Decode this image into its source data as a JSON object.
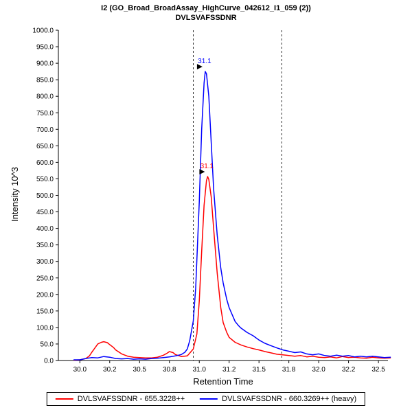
{
  "header": {
    "title_line1": "I2 (GO_Broad_BroadAssay_HighCurve_042612_I1_059 (2))",
    "title_line2": "DVLSVAFSSDNR"
  },
  "chart_data": {
    "type": "line",
    "title": "I2 (GO_Broad_BroadAssay_HighCurve_042612_I1_059 (2))",
    "subtitle": "DVLSVAFSSDNR",
    "xlabel": "Retention Time",
    "ylabel": "Intensity 10^3",
    "grid": false,
    "legend_position": "bottom",
    "x_axis": {
      "min": 29.82,
      "max": 32.58,
      "ticks": [
        {
          "v": 30.0,
          "label": "30.0"
        },
        {
          "v": 30.25,
          "label": "30.2"
        },
        {
          "v": 30.5,
          "label": "30.5"
        },
        {
          "v": 30.75,
          "label": "30.8"
        },
        {
          "v": 31.0,
          "label": "31.0"
        },
        {
          "v": 31.25,
          "label": "31.2"
        },
        {
          "v": 31.5,
          "label": "31.5"
        },
        {
          "v": 31.75,
          "label": "31.8"
        },
        {
          "v": 32.0,
          "label": "32.0"
        },
        {
          "v": 32.25,
          "label": "32.2"
        },
        {
          "v": 32.5,
          "label": "32.5"
        }
      ]
    },
    "y_axis": {
      "min": 0,
      "max": 1000,
      "tick_step": 50,
      "tick_decimals": 1
    },
    "boundaries": [
      30.95,
      31.69
    ],
    "series": [
      {
        "id": "light",
        "name": "DVLSVAFSSDNR - 655.3228++",
        "color": "#ff0000",
        "points": [
          [
            29.95,
            1
          ],
          [
            30.0,
            2
          ],
          [
            30.05,
            6
          ],
          [
            30.08,
            14
          ],
          [
            30.1,
            25
          ],
          [
            30.13,
            40
          ],
          [
            30.15,
            50
          ],
          [
            30.18,
            55
          ],
          [
            30.2,
            57
          ],
          [
            30.23,
            54
          ],
          [
            30.25,
            48
          ],
          [
            30.28,
            40
          ],
          [
            30.3,
            32
          ],
          [
            30.35,
            20
          ],
          [
            30.4,
            13
          ],
          [
            30.45,
            10
          ],
          [
            30.5,
            9
          ],
          [
            30.55,
            8
          ],
          [
            30.6,
            8
          ],
          [
            30.65,
            10
          ],
          [
            30.7,
            16
          ],
          [
            30.73,
            22
          ],
          [
            30.75,
            27
          ],
          [
            30.78,
            24
          ],
          [
            30.8,
            18
          ],
          [
            30.85,
            12
          ],
          [
            30.9,
            14
          ],
          [
            30.95,
            35
          ],
          [
            30.98,
            80
          ],
          [
            31.0,
            180
          ],
          [
            31.02,
            330
          ],
          [
            31.04,
            470
          ],
          [
            31.06,
            545
          ],
          [
            31.07,
            557
          ],
          [
            31.08,
            548
          ],
          [
            31.1,
            495
          ],
          [
            31.12,
            400
          ],
          [
            31.15,
            265
          ],
          [
            31.18,
            160
          ],
          [
            31.2,
            115
          ],
          [
            31.23,
            85
          ],
          [
            31.25,
            70
          ],
          [
            31.3,
            55
          ],
          [
            31.35,
            47
          ],
          [
            31.4,
            41
          ],
          [
            31.45,
            36
          ],
          [
            31.5,
            32
          ],
          [
            31.55,
            27
          ],
          [
            31.6,
            23
          ],
          [
            31.65,
            19
          ],
          [
            31.7,
            17
          ],
          [
            31.75,
            15
          ],
          [
            31.8,
            13
          ],
          [
            31.85,
            15
          ],
          [
            31.9,
            11
          ],
          [
            31.95,
            13
          ],
          [
            32.0,
            10
          ],
          [
            32.05,
            9
          ],
          [
            32.1,
            11
          ],
          [
            32.15,
            8
          ],
          [
            32.2,
            12
          ],
          [
            32.25,
            9
          ],
          [
            32.3,
            10
          ],
          [
            32.35,
            8
          ],
          [
            32.4,
            7
          ],
          [
            32.45,
            10
          ],
          [
            32.5,
            8
          ],
          [
            32.55,
            7
          ],
          [
            32.6,
            8
          ]
        ]
      },
      {
        "id": "heavy",
        "name": "DVLSVAFSSDNR - 660.3269++ (heavy)",
        "color": "#0000ff",
        "points": [
          [
            29.95,
            2
          ],
          [
            30.0,
            2
          ],
          [
            30.05,
            6
          ],
          [
            30.1,
            9
          ],
          [
            30.15,
            8
          ],
          [
            30.2,
            12
          ],
          [
            30.25,
            10
          ],
          [
            30.3,
            6
          ],
          [
            30.35,
            5
          ],
          [
            30.4,
            6
          ],
          [
            30.45,
            4
          ],
          [
            30.5,
            5
          ],
          [
            30.55,
            4
          ],
          [
            30.6,
            6
          ],
          [
            30.65,
            7
          ],
          [
            30.7,
            9
          ],
          [
            30.75,
            11
          ],
          [
            30.8,
            14
          ],
          [
            30.85,
            18
          ],
          [
            30.88,
            25
          ],
          [
            30.9,
            35
          ],
          [
            30.92,
            60
          ],
          [
            30.95,
            120
          ],
          [
            30.97,
            220
          ],
          [
            31.0,
            480
          ],
          [
            31.02,
            700
          ],
          [
            31.04,
            840
          ],
          [
            31.05,
            875
          ],
          [
            31.06,
            868
          ],
          [
            31.08,
            800
          ],
          [
            31.1,
            660
          ],
          [
            31.12,
            520
          ],
          [
            31.15,
            380
          ],
          [
            31.18,
            280
          ],
          [
            31.2,
            235
          ],
          [
            31.23,
            185
          ],
          [
            31.25,
            160
          ],
          [
            31.28,
            135
          ],
          [
            31.3,
            118
          ],
          [
            31.33,
            105
          ],
          [
            31.35,
            98
          ],
          [
            31.4,
            85
          ],
          [
            31.45,
            75
          ],
          [
            31.5,
            62
          ],
          [
            31.55,
            52
          ],
          [
            31.6,
            45
          ],
          [
            31.65,
            38
          ],
          [
            31.7,
            32
          ],
          [
            31.75,
            28
          ],
          [
            31.8,
            24
          ],
          [
            31.85,
            26
          ],
          [
            31.9,
            20
          ],
          [
            31.95,
            17
          ],
          [
            32.0,
            20
          ],
          [
            32.05,
            15
          ],
          [
            32.1,
            13
          ],
          [
            32.15,
            16
          ],
          [
            32.2,
            13
          ],
          [
            32.25,
            15
          ],
          [
            32.3,
            11
          ],
          [
            32.35,
            13
          ],
          [
            32.4,
            11
          ],
          [
            32.45,
            13
          ],
          [
            32.5,
            11
          ],
          [
            32.55,
            9
          ],
          [
            32.6,
            10
          ]
        ]
      }
    ],
    "annotations": [
      {
        "x": 31.05,
        "y": 875,
        "label": "31.1",
        "color": "#0000ff"
      },
      {
        "x": 31.07,
        "y": 557,
        "label": "31.1",
        "color": "#ff0000"
      }
    ]
  },
  "legend": {
    "items": [
      {
        "label": "DVLSVAFSSDNR - 655.3228++",
        "color": "#ff0000"
      },
      {
        "label": "DVLSVAFSSDNR - 660.3269++ (heavy)",
        "color": "#0000ff"
      }
    ]
  },
  "colors": {
    "axis": "#000000",
    "boundary": "#333333",
    "background": "#ffffff"
  }
}
